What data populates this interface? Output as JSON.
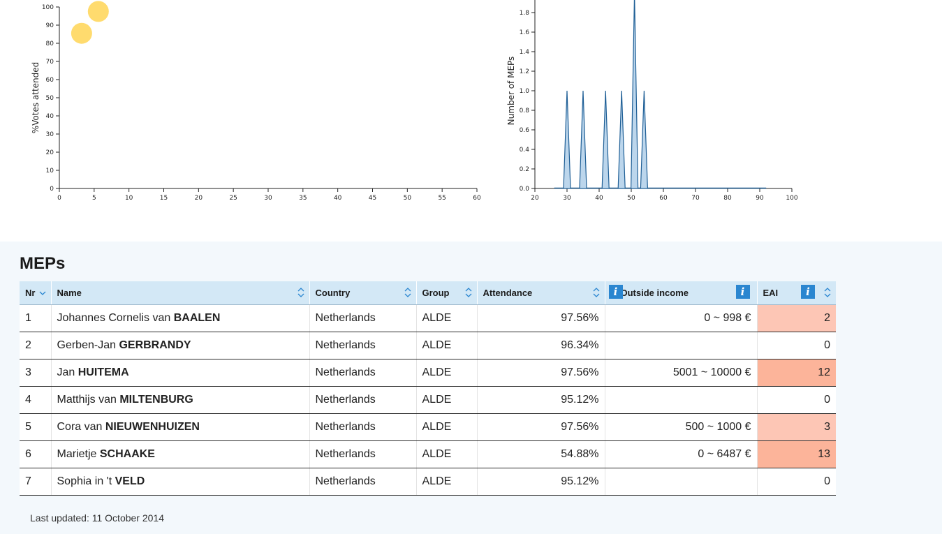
{
  "chart_data": [
    {
      "type": "scatter",
      "title": "",
      "xlabel": "",
      "ylabel": "%Votes attended",
      "xlim": [
        0,
        60
      ],
      "ylim": [
        0,
        100
      ],
      "xticks": [
        "0",
        "5",
        "10",
        "15",
        "20",
        "25",
        "30",
        "35",
        "40",
        "45",
        "50",
        "55",
        "60"
      ],
      "yticks": [
        "0",
        "10",
        "20",
        "30",
        "40",
        "50",
        "60",
        "70",
        "80",
        "90",
        "100"
      ],
      "points": [
        {
          "x": 5.6,
          "y": 97.56
        },
        {
          "x": 3.2,
          "y": 85.5
        }
      ],
      "color": "#ffd966"
    },
    {
      "type": "area",
      "title": "",
      "xlabel": "",
      "ylabel": "Number of MEPs",
      "xlim": [
        20,
        100
      ],
      "ylim": [
        0,
        2
      ],
      "xticks": [
        "20",
        "30",
        "40",
        "50",
        "60",
        "70",
        "80",
        "90",
        "100"
      ],
      "yticks": [
        "0.0",
        "0.2",
        "0.4",
        "0.6",
        "0.8",
        "1.0",
        "1.2",
        "1.4",
        "1.6",
        "1.8"
      ],
      "peaks": [
        {
          "x": 30,
          "y": 1
        },
        {
          "x": 35,
          "y": 1
        },
        {
          "x": 42,
          "y": 1
        },
        {
          "x": 47,
          "y": 1
        },
        {
          "x": 51,
          "y": 2
        },
        {
          "x": 54,
          "y": 1
        }
      ],
      "baseline_x": [
        26,
        92
      ],
      "fill": "#bcd6ec",
      "stroke": "#1f5f96"
    }
  ],
  "meps": {
    "title": "MEPs",
    "columns": {
      "nr": "Nr",
      "name": "Name",
      "country": "Country",
      "group": "Group",
      "attendance": "Attendance",
      "income": "Outside income",
      "eai": "EAI"
    },
    "info_glyph": "i",
    "rows": [
      {
        "nr": "1",
        "first": "Johannes Cornelis van",
        "last": "BAALEN",
        "country": "Netherlands",
        "group": "ALDE",
        "attendance": "97.56%",
        "income": "0 ~ 998 €",
        "eai": "2",
        "eai_bg": "#fdc6b5"
      },
      {
        "nr": "2",
        "first": "Gerben-Jan",
        "last": "GERBRANDY",
        "country": "Netherlands",
        "group": "ALDE",
        "attendance": "96.34%",
        "income": "",
        "eai": "0",
        "eai_bg": "#ffffff"
      },
      {
        "nr": "3",
        "first": "Jan",
        "last": "HUITEMA",
        "country": "Netherlands",
        "group": "ALDE",
        "attendance": "97.56%",
        "income": "5001 ~ 10000 €",
        "eai": "12",
        "eai_bg": "#fcb49a"
      },
      {
        "nr": "4",
        "first": "Matthijs van",
        "last": "MILTENBURG",
        "country": "Netherlands",
        "group": "ALDE",
        "attendance": "95.12%",
        "income": "",
        "eai": "0",
        "eai_bg": "#ffffff"
      },
      {
        "nr": "5",
        "first": "Cora van",
        "last": "NIEUWENHUIZEN",
        "country": "Netherlands",
        "group": "ALDE",
        "attendance": "97.56%",
        "income": "500 ~ 1000 €",
        "eai": "3",
        "eai_bg": "#fdc6b5"
      },
      {
        "nr": "6",
        "first": "Marietje",
        "last": "SCHAAKE",
        "country": "Netherlands",
        "group": "ALDE",
        "attendance": "54.88%",
        "income": "0 ~ 6487 €",
        "eai": "13",
        "eai_bg": "#fcb49a"
      },
      {
        "nr": "7",
        "first": "Sophia in 't",
        "last": "VELD",
        "country": "Netherlands",
        "group": "ALDE",
        "attendance": "95.12%",
        "income": "",
        "eai": "0",
        "eai_bg": "#ffffff"
      }
    ],
    "last_updated": "Last updated: 11 October 2014"
  }
}
